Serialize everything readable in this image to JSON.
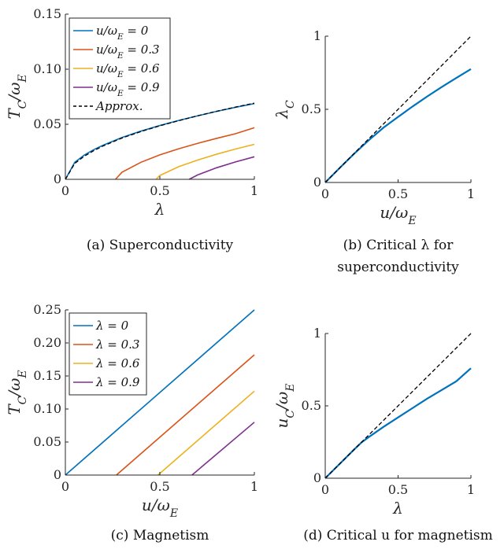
{
  "chart_data": [
    {
      "type": "line",
      "caption": [
        "(a) Superconductivity"
      ],
      "xlabel": "λ",
      "ylabel": "T_C/ω_E",
      "xlim": [
        0,
        1
      ],
      "ylim": [
        0,
        0.15
      ],
      "xticks": [
        "0",
        "0.5",
        "1"
      ],
      "yticks": [
        "0",
        "0.05",
        "0.10",
        "0.15"
      ],
      "legend_position": "top-left",
      "grid": false,
      "series": [
        {
          "name": "u/ω_E = 0",
          "color": "#0072bd",
          "dash": false,
          "x": [
            0,
            0.05,
            0.1,
            0.15,
            0.2,
            0.3,
            0.4,
            0.5,
            0.6,
            0.7,
            0.8,
            0.9,
            1.0
          ],
          "y": [
            0,
            0.0155,
            0.022,
            0.0269,
            0.031,
            0.038,
            0.0438,
            0.0489,
            0.0535,
            0.0577,
            0.0617,
            0.0654,
            0.0688
          ]
        },
        {
          "name": "u/ω_E = 0.3",
          "color": "#d95319",
          "dash": false,
          "x": [
            0.265,
            0.3,
            0.4,
            0.5,
            0.6,
            0.7,
            0.8,
            0.9,
            1.0
          ],
          "y": [
            0,
            0.0065,
            0.0155,
            0.0222,
            0.0278,
            0.0327,
            0.0372,
            0.0414,
            0.0469
          ]
        },
        {
          "name": "u/ω_E = 0.6",
          "color": "#edb120",
          "dash": false,
          "x": [
            0.48,
            0.5,
            0.6,
            0.7,
            0.8,
            0.9,
            1.0
          ],
          "y": [
            0,
            0.0035,
            0.0115,
            0.0175,
            0.0228,
            0.0275,
            0.0318
          ]
        },
        {
          "name": "u/ω_E = 0.9",
          "color": "#7e2f8e",
          "dash": false,
          "x": [
            0.655,
            0.7,
            0.8,
            0.9,
            1.0
          ],
          "y": [
            0,
            0.004,
            0.0105,
            0.0158,
            0.0205
          ]
        },
        {
          "name": "Approx.",
          "color": "#000000",
          "dash": true,
          "x": [
            0,
            0.05,
            0.1,
            0.15,
            0.2,
            0.3,
            0.4,
            0.5,
            0.6,
            0.7,
            0.8,
            0.9,
            1.0
          ],
          "y": [
            0,
            0.0145,
            0.021,
            0.026,
            0.0303,
            0.0375,
            0.0434,
            0.0486,
            0.0533,
            0.0577,
            0.0618,
            0.0656,
            0.0692
          ]
        }
      ]
    },
    {
      "type": "line",
      "caption": [
        "(b) Critical λ for",
        "superconductivity"
      ],
      "xlabel": "u/ω_E",
      "ylabel": "λ_C",
      "xlim": [
        0,
        1
      ],
      "ylim": [
        0,
        1
      ],
      "xticks": [
        "0",
        "0.5",
        "1"
      ],
      "yticks": [
        "0",
        "0.5",
        "1"
      ],
      "grid": false,
      "series": [
        {
          "color": "#0072bd",
          "dash": false,
          "x": [
            0,
            0.1,
            0.2,
            0.3,
            0.4,
            0.5,
            0.6,
            0.7,
            0.8,
            0.9,
            1.0
          ],
          "y": [
            0,
            0.1,
            0.198,
            0.29,
            0.375,
            0.448,
            0.52,
            0.588,
            0.653,
            0.715,
            0.775
          ]
        },
        {
          "color": "#000000",
          "dash": true,
          "x": [
            0,
            1
          ],
          "y": [
            0,
            1
          ]
        }
      ]
    },
    {
      "type": "line",
      "caption": [
        "(c) Magnetism"
      ],
      "xlabel": "u/ω_E",
      "ylabel": "T_C/ω_E",
      "xlim": [
        0,
        1
      ],
      "ylim": [
        0,
        0.25
      ],
      "xticks": [
        "0",
        "0.5",
        "1"
      ],
      "yticks": [
        "0",
        "0.05",
        "0.10",
        "0.15",
        "0.20",
        "0.25"
      ],
      "legend_position": "top-left",
      "grid": false,
      "series": [
        {
          "name": "λ = 0",
          "color": "#0072bd",
          "dash": false,
          "x": [
            0,
            1
          ],
          "y": [
            0,
            0.25
          ]
        },
        {
          "name": "λ = 0.3",
          "color": "#d95319",
          "dash": false,
          "x": [
            0.27,
            1
          ],
          "y": [
            0,
            0.182
          ]
        },
        {
          "name": "λ = 0.6",
          "color": "#edb120",
          "dash": false,
          "x": [
            0.49,
            1
          ],
          "y": [
            0,
            0.127
          ]
        },
        {
          "name": "λ = 0.9",
          "color": "#7e2f8e",
          "dash": false,
          "x": [
            0.67,
            1
          ],
          "y": [
            0,
            0.08
          ]
        }
      ]
    },
    {
      "type": "line",
      "caption": [
        "(d) Critical u for magnetism"
      ],
      "xlabel": "λ",
      "ylabel": "u_C/ω_E",
      "xlim": [
        0,
        1
      ],
      "ylim": [
        0,
        1
      ],
      "xticks": [
        "0",
        "0.5",
        "1"
      ],
      "yticks": [
        "0",
        "0.5",
        "1"
      ],
      "grid": false,
      "series": [
        {
          "color": "#0072bd",
          "dash": false,
          "x": [
            0,
            0.1,
            0.2,
            0.25,
            0.3,
            0.4,
            0.5,
            0.6,
            0.7,
            0.8,
            0.9,
            1.0
          ],
          "y": [
            0,
            0.1,
            0.2,
            0.248,
            0.285,
            0.355,
            0.42,
            0.485,
            0.55,
            0.61,
            0.67,
            0.76
          ]
        },
        {
          "color": "#000000",
          "dash": true,
          "x": [
            0,
            1
          ],
          "y": [
            0,
            1
          ]
        }
      ]
    }
  ]
}
